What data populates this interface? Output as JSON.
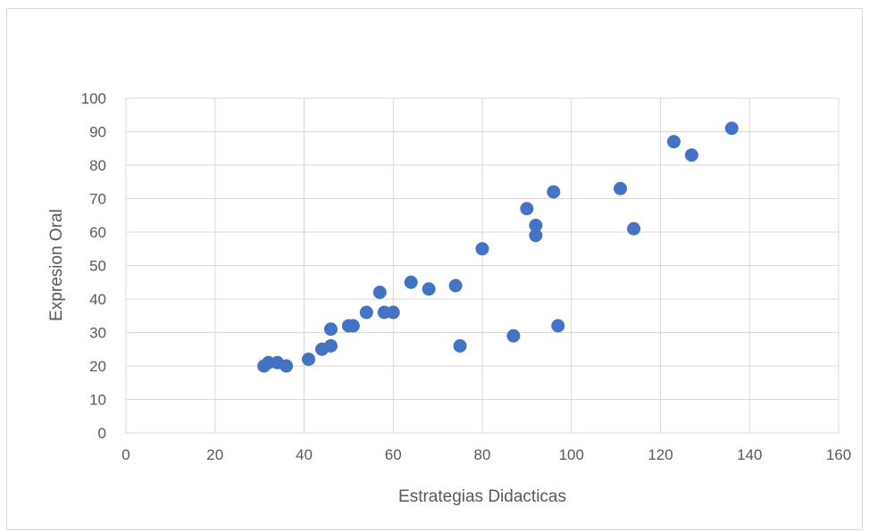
{
  "chart_data": {
    "type": "scatter",
    "title": "",
    "xlabel": "Estrategias Didacticas",
    "ylabel": "Expresion Oral",
    "xlim": [
      0,
      160
    ],
    "ylim": [
      0,
      100
    ],
    "xticks": [
      0,
      20,
      40,
      60,
      80,
      100,
      120,
      140,
      160
    ],
    "yticks": [
      0,
      10,
      20,
      30,
      40,
      50,
      60,
      70,
      80,
      90,
      100
    ],
    "grid": true,
    "legend": "none",
    "marker_color": "#4472C4",
    "grid_color": "#d9d9d9",
    "text_color": "#595959",
    "series": [
      {
        "points": [
          {
            "x": 31,
            "y": 20
          },
          {
            "x": 32,
            "y": 21
          },
          {
            "x": 34,
            "y": 21
          },
          {
            "x": 36,
            "y": 20
          },
          {
            "x": 41,
            "y": 22
          },
          {
            "x": 44,
            "y": 25
          },
          {
            "x": 46,
            "y": 26
          },
          {
            "x": 46,
            "y": 31
          },
          {
            "x": 50,
            "y": 32
          },
          {
            "x": 51,
            "y": 32
          },
          {
            "x": 54,
            "y": 36
          },
          {
            "x": 57,
            "y": 42
          },
          {
            "x": 58,
            "y": 36
          },
          {
            "x": 60,
            "y": 36
          },
          {
            "x": 64,
            "y": 45
          },
          {
            "x": 68,
            "y": 43
          },
          {
            "x": 74,
            "y": 44
          },
          {
            "x": 75,
            "y": 26
          },
          {
            "x": 80,
            "y": 55
          },
          {
            "x": 87,
            "y": 29
          },
          {
            "x": 90,
            "y": 67
          },
          {
            "x": 92,
            "y": 62
          },
          {
            "x": 92,
            "y": 59
          },
          {
            "x": 96,
            "y": 72
          },
          {
            "x": 97,
            "y": 32
          },
          {
            "x": 111,
            "y": 73
          },
          {
            "x": 114,
            "y": 61
          },
          {
            "x": 123,
            "y": 87
          },
          {
            "x": 127,
            "y": 83
          },
          {
            "x": 136,
            "y": 91
          }
        ]
      }
    ]
  }
}
